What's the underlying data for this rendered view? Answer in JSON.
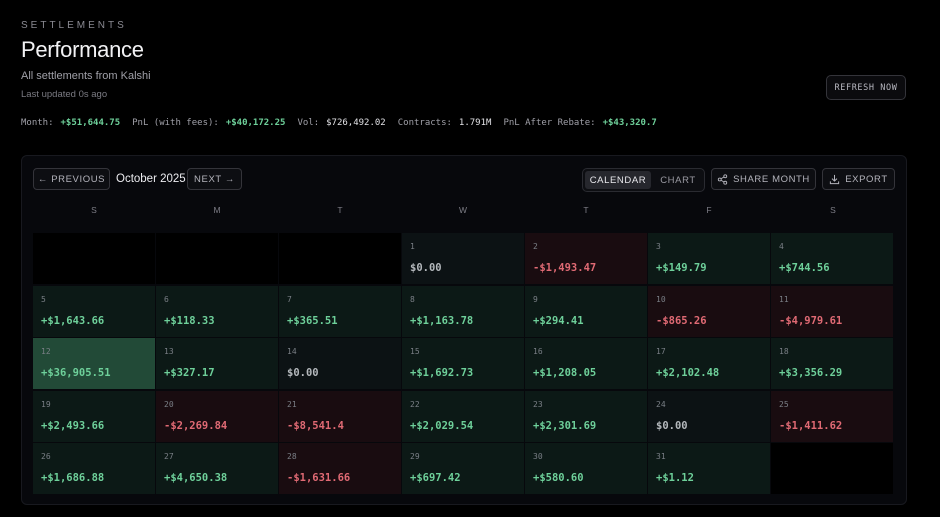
{
  "header": {
    "eyebrow": "SETTLEMENTS",
    "title": "Performance",
    "subtitle": "All settlements from Kalshi",
    "updated": "Last updated 0s ago",
    "refresh_label": "REFRESH NOW"
  },
  "stats": {
    "month_label": "Month:",
    "month_value": "+$51,644.75",
    "pnl_fees_label": "PnL (with fees):",
    "pnl_fees_value": "+$40,172.25",
    "vol_label": "Vol:",
    "vol_value": "$726,492.02",
    "contracts_label": "Contracts:",
    "contracts_value": "1.791M",
    "rebate_label": "PnL After Rebate:",
    "rebate_value": "+$43,320.7"
  },
  "toolbar": {
    "previous_label": "← PREVIOUS",
    "month": "October 2025",
    "next_label": "NEXT →",
    "calendar_label": "CALENDAR",
    "chart_label": "CHART",
    "share_label": "SHARE MONTH",
    "export_label": "EXPORT",
    "share_icon": "share-icon",
    "export_icon": "download-icon"
  },
  "weekdays": [
    "S",
    "M",
    "T",
    "W",
    "T",
    "F",
    "S"
  ],
  "colors": {
    "positive": "#6ed09a",
    "negative": "#e06a74",
    "neutral": "#b4b8bc"
  },
  "days": [
    {
      "day": "1",
      "value": "$0.00",
      "tone": "zero"
    },
    {
      "day": "2",
      "value": "-$1,493.47",
      "tone": "neg"
    },
    {
      "day": "3",
      "value": "+$149.79",
      "tone": "pos"
    },
    {
      "day": "4",
      "value": "+$744.56",
      "tone": "pos"
    },
    {
      "day": "5",
      "value": "+$1,643.66",
      "tone": "pos"
    },
    {
      "day": "6",
      "value": "+$118.33",
      "tone": "pos"
    },
    {
      "day": "7",
      "value": "+$365.51",
      "tone": "pos"
    },
    {
      "day": "8",
      "value": "+$1,163.78",
      "tone": "pos"
    },
    {
      "day": "9",
      "value": "+$294.41",
      "tone": "pos"
    },
    {
      "day": "10",
      "value": "-$865.26",
      "tone": "neg"
    },
    {
      "day": "11",
      "value": "-$4,979.61",
      "tone": "neg"
    },
    {
      "day": "12",
      "value": "+$36,905.51",
      "tone": "big"
    },
    {
      "day": "13",
      "value": "+$327.17",
      "tone": "pos"
    },
    {
      "day": "14",
      "value": "$0.00",
      "tone": "zero"
    },
    {
      "day": "15",
      "value": "+$1,692.73",
      "tone": "pos"
    },
    {
      "day": "16",
      "value": "+$1,208.05",
      "tone": "pos"
    },
    {
      "day": "17",
      "value": "+$2,102.48",
      "tone": "pos"
    },
    {
      "day": "18",
      "value": "+$3,356.29",
      "tone": "pos"
    },
    {
      "day": "19",
      "value": "+$2,493.66",
      "tone": "pos"
    },
    {
      "day": "20",
      "value": "-$2,269.84",
      "tone": "neg"
    },
    {
      "day": "21",
      "value": "-$8,541.4",
      "tone": "neg"
    },
    {
      "day": "22",
      "value": "+$2,029.54",
      "tone": "pos"
    },
    {
      "day": "23",
      "value": "+$2,301.69",
      "tone": "pos"
    },
    {
      "day": "24",
      "value": "$0.00",
      "tone": "zero"
    },
    {
      "day": "25",
      "value": "-$1,411.62",
      "tone": "neg"
    },
    {
      "day": "26",
      "value": "+$1,686.88",
      "tone": "pos"
    },
    {
      "day": "27",
      "value": "+$4,650.38",
      "tone": "pos"
    },
    {
      "day": "28",
      "value": "-$1,631.66",
      "tone": "neg"
    },
    {
      "day": "29",
      "value": "+$697.42",
      "tone": "pos"
    },
    {
      "day": "30",
      "value": "+$580.60",
      "tone": "pos"
    },
    {
      "day": "31",
      "value": "+$1.12",
      "tone": "pos"
    }
  ]
}
